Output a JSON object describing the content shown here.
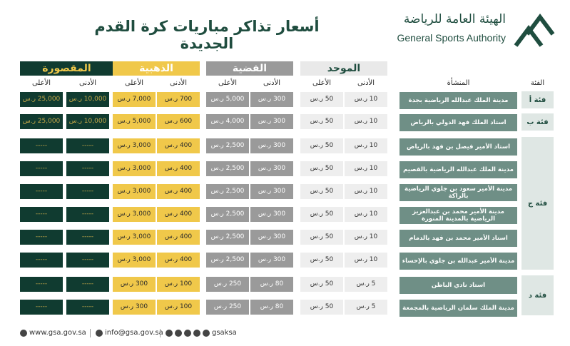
{
  "header": {
    "title": "أسعار تذاكر مباريات كرة القدم الجديدة",
    "org_ar": "الهيئة العامة للرياضة",
    "org_en": "General Sports Authority"
  },
  "groups": {
    "unified": "الموحد",
    "silver": "الفضية",
    "gold": "الذهبية",
    "boxes": "المقصورة"
  },
  "columns": {
    "category": "الفئة",
    "venue": "المنشأة",
    "min": "الأدنى",
    "max": "الأعلى"
  },
  "categories": {
    "a": "فئة أ",
    "b": "فئة ب",
    "c": "فئة ج",
    "d": "فئة د"
  },
  "rows": [
    {
      "venue": "مدينة الملك عبدالله الرياضية بجدة",
      "u_min": "10 ر.س",
      "u_max": "50 ر.س",
      "s_min": "300 ر.س",
      "s_max": "5,000 ر.س",
      "g_min": "700 ر.س",
      "g_max": "7,000 ر.س",
      "b_min": "10,000 ر.س",
      "b_max": "25,000 ر.س"
    },
    {
      "venue": "استاد الملك فهد الدولي بالرياض",
      "u_min": "10 ر.س",
      "u_max": "50 ر.س",
      "s_min": "300 ر.س",
      "s_max": "4,000 ر.س",
      "g_min": "600 ر.س",
      "g_max": "5,000 ر.س",
      "b_min": "10,000 ر.س",
      "b_max": "25,000 ر.س"
    },
    {
      "venue": "استاد الأمير فيصل بن فهد بالرياض",
      "u_min": "10 ر.س",
      "u_max": "50 ر.س",
      "s_min": "300 ر.س",
      "s_max": "2,500 ر.س",
      "g_min": "400 ر.س",
      "g_max": "3,000 ر.س",
      "b_min": "-----",
      "b_max": "-----"
    },
    {
      "venue": "مدينة الملك عبدالله الرياضية بالقصيم",
      "u_min": "10 ر.س",
      "u_max": "50 ر.س",
      "s_min": "300 ر.س",
      "s_max": "2,500 ر.س",
      "g_min": "400 ر.س",
      "g_max": "3,000 ر.س",
      "b_min": "-----",
      "b_max": "-----"
    },
    {
      "venue": "مدينة الأمير سعود بن جلوي الرياضية بالراكة",
      "u_min": "10 ر.س",
      "u_max": "50 ر.س",
      "s_min": "300 ر.س",
      "s_max": "2,500 ر.س",
      "g_min": "400 ر.س",
      "g_max": "3,000 ر.س",
      "b_min": "-----",
      "b_max": "-----"
    },
    {
      "venue": "مدينة الأمير محمد بن عبدالعزيز الرياضية بالمدينة المنورة",
      "u_min": "10 ر.س",
      "u_max": "50 ر.س",
      "s_min": "300 ر.س",
      "s_max": "2,500 ر.س",
      "g_min": "400 ر.س",
      "g_max": "3,000 ر.س",
      "b_min": "-----",
      "b_max": "-----"
    },
    {
      "venue": "استاد الأمير محمد بن فهد بالدمام",
      "u_min": "10 ر.س",
      "u_max": "50 ر.س",
      "s_min": "300 ر.س",
      "s_max": "2,500 ر.س",
      "g_min": "400 ر.س",
      "g_max": "3,000 ر.س",
      "b_min": "-----",
      "b_max": "-----"
    },
    {
      "venue": "مدينة الأمير عبدالله بن جلوي بالإحساء",
      "u_min": "10 ر.س",
      "u_max": "50 ر.س",
      "s_min": "300 ر.س",
      "s_max": "2,500 ر.س",
      "g_min": "400 ر.س",
      "g_max": "3,000 ر.س",
      "b_min": "-----",
      "b_max": "-----"
    },
    {
      "venue": "استاد نادي الباطن",
      "u_min": "5 ر.س",
      "u_max": "50 ر.س",
      "s_min": "80 ر.س",
      "s_max": "250 ر.س",
      "g_min": "100 ر.س",
      "g_max": "300 ر.س",
      "b_min": "-----",
      "b_max": "-----"
    },
    {
      "venue": "مدينة الملك سلمان الرياضية بالمجمعة",
      "u_min": "5 ر.س",
      "u_max": "50 ر.س",
      "s_min": "80 ر.س",
      "s_max": "250 ر.س",
      "g_min": "100 ر.س",
      "g_max": "300 ر.س",
      "b_min": "-----",
      "b_max": "-----"
    }
  ],
  "footer": {
    "website": "www.gsa.gov.sa",
    "email": "info@gsa.gov.sa",
    "social": "gsaksa"
  },
  "colors": {
    "brand": "#1f4d3f",
    "dark_green": "#103b30",
    "gold": "#f0c84a",
    "grey": "#9a9a9a",
    "light": "#eeeeee",
    "venue": "#6f8f86"
  }
}
